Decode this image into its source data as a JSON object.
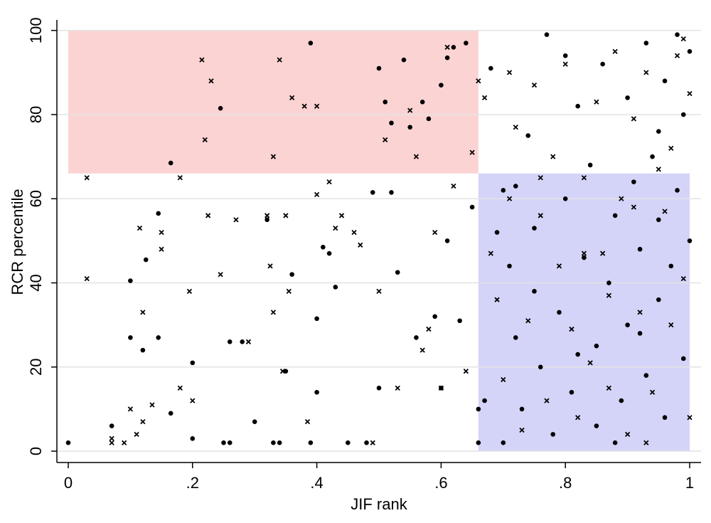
{
  "chart_data": {
    "type": "scatter",
    "x_label": "JIF rank",
    "y_label": "RCR percentile",
    "xlim": [
      -0.0183,
      1.0183
    ],
    "ylim": [
      -2.7,
      102.5
    ],
    "xticks": [
      0,
      {
        "value": 0.2,
        "label": ".2"
      },
      {
        "value": 0.4,
        "label": ".4"
      },
      {
        "value": 0.6,
        "label": ".6"
      },
      {
        "value": 0.8,
        "label": ".8"
      },
      1
    ],
    "yticks": [
      0,
      20,
      40,
      60,
      80,
      100
    ],
    "grid": true,
    "regions": [
      {
        "xlim": [
          0,
          0.66
        ],
        "ylim": [
          66,
          100
        ],
        "color": "#fcd3d3"
      },
      {
        "xlim": [
          0.66,
          1
        ],
        "ylim": [
          0,
          66
        ],
        "color": "#d4d4f8"
      }
    ],
    "series": [
      {
        "marker": "circle",
        "color": "#000000",
        "x": [
          0,
          0.07,
          0.1,
          0.1,
          0.12,
          0.125,
          0.145,
          0.145,
          0.165,
          0.165,
          0.2,
          0.2,
          0.245,
          0.25,
          0.26,
          0.26,
          0.28,
          0.3,
          0.32,
          0.33,
          0.34,
          0.35,
          0.36,
          0.39,
          0.39,
          0.4,
          0.4,
          0.41,
          0.42,
          0.43,
          0.45,
          0.48,
          0.49,
          0.5,
          0.5,
          0.51,
          0.52,
          0.52,
          0.53,
          0.54,
          0.55,
          0.56,
          0.57,
          0.58,
          0.59,
          0.6,
          0.6,
          0.61,
          0.61,
          0.62,
          0.63,
          0.64,
          0.65,
          0.66,
          0.66,
          0.67,
          0.68,
          0.7,
          0.7,
          0.71,
          0.72,
          0.73,
          0.74,
          0.75,
          0.76,
          0.77,
          0.78,
          0.79,
          0.8,
          0.8,
          0.81,
          0.82,
          0.83,
          0.84,
          0.85,
          0.86,
          0.87,
          0.88,
          0.89,
          0.9,
          0.9,
          0.91,
          0.92,
          0.93,
          0.93,
          0.94,
          0.95,
          0.95,
          0.96,
          0.96,
          0.97,
          0.98,
          0.98,
          0.99,
          0.99,
          1,
          1,
          0.88,
          0.75,
          0.72,
          0.85,
          0.92,
          0.69,
          0.82,
          0.95
        ],
        "y": [
          2,
          6,
          40.5,
          27,
          24,
          45.5,
          27,
          56.5,
          68.5,
          9,
          3,
          21,
          81.5,
          2,
          2,
          26,
          26,
          7,
          55,
          2,
          2,
          19,
          42,
          97,
          2,
          31.5,
          14,
          48.5,
          47,
          39,
          2,
          2,
          61.5,
          91,
          15,
          83,
          78,
          61.5,
          42.5,
          93,
          77,
          27,
          83,
          79,
          32,
          87,
          15,
          93.5,
          50,
          96,
          31,
          97,
          58,
          2,
          10,
          12,
          91,
          2,
          62,
          44,
          27,
          10,
          75,
          53,
          20,
          99,
          4,
          33,
          94,
          60,
          14,
          82,
          46,
          68,
          25,
          92,
          40,
          56,
          12,
          84,
          30,
          64,
          48,
          97,
          18,
          70,
          55,
          36,
          88,
          8,
          44,
          99,
          62,
          80,
          22,
          50,
          95,
          2,
          38,
          63,
          6,
          28,
          52,
          23,
          76
        ]
      },
      {
        "marker": "cross",
        "color": "#000000",
        "x": [
          0.03,
          0.03,
          0.07,
          0.07,
          0.09,
          0.1,
          0.11,
          0.115,
          0.12,
          0.12,
          0.135,
          0.15,
          0.15,
          0.18,
          0.18,
          0.195,
          0.2,
          0.215,
          0.22,
          0.225,
          0.23,
          0.245,
          0.27,
          0.29,
          0.32,
          0.325,
          0.33,
          0.33,
          0.34,
          0.345,
          0.35,
          0.355,
          0.36,
          0.38,
          0.385,
          0.4,
          0.4,
          0.42,
          0.43,
          0.44,
          0.46,
          0.47,
          0.49,
          0.5,
          0.51,
          0.53,
          0.55,
          0.56,
          0.57,
          0.58,
          0.59,
          0.6,
          0.61,
          0.62,
          0.64,
          0.65,
          0.66,
          0.67,
          0.68,
          0.69,
          0.7,
          0.71,
          0.72,
          0.73,
          0.74,
          0.75,
          0.76,
          0.77,
          0.78,
          0.79,
          0.8,
          0.81,
          0.82,
          0.83,
          0.84,
          0.85,
          0.86,
          0.87,
          0.88,
          0.89,
          0.9,
          0.91,
          0.92,
          0.93,
          0.94,
          0.95,
          0.96,
          0.97,
          0.98,
          0.99,
          1,
          1,
          0.93,
          0.91,
          0.97,
          0.99,
          0.87,
          0.76,
          0.71,
          0.83
        ],
        "y": [
          65,
          41,
          3,
          2,
          2,
          10,
          4,
          53,
          7,
          33,
          11,
          52,
          48,
          65,
          15,
          38,
          12,
          93,
          74,
          56,
          88,
          42,
          55,
          26,
          56,
          44,
          70,
          33,
          93,
          19,
          56,
          38,
          84,
          82,
          7,
          82,
          61,
          64,
          53,
          56,
          52,
          49,
          2,
          38,
          74,
          15,
          81,
          70,
          24,
          29,
          52,
          15,
          96,
          63,
          19,
          71,
          88,
          84,
          47,
          36,
          17,
          60,
          77,
          5,
          31,
          87,
          56,
          12,
          70,
          44,
          92,
          29,
          8,
          65,
          21,
          83,
          47,
          15,
          95,
          60,
          4,
          79,
          33,
          90,
          14,
          67,
          57,
          30,
          94,
          41,
          85,
          8,
          2,
          58,
          72,
          98,
          37,
          65,
          90,
          47
        ]
      }
    ]
  }
}
